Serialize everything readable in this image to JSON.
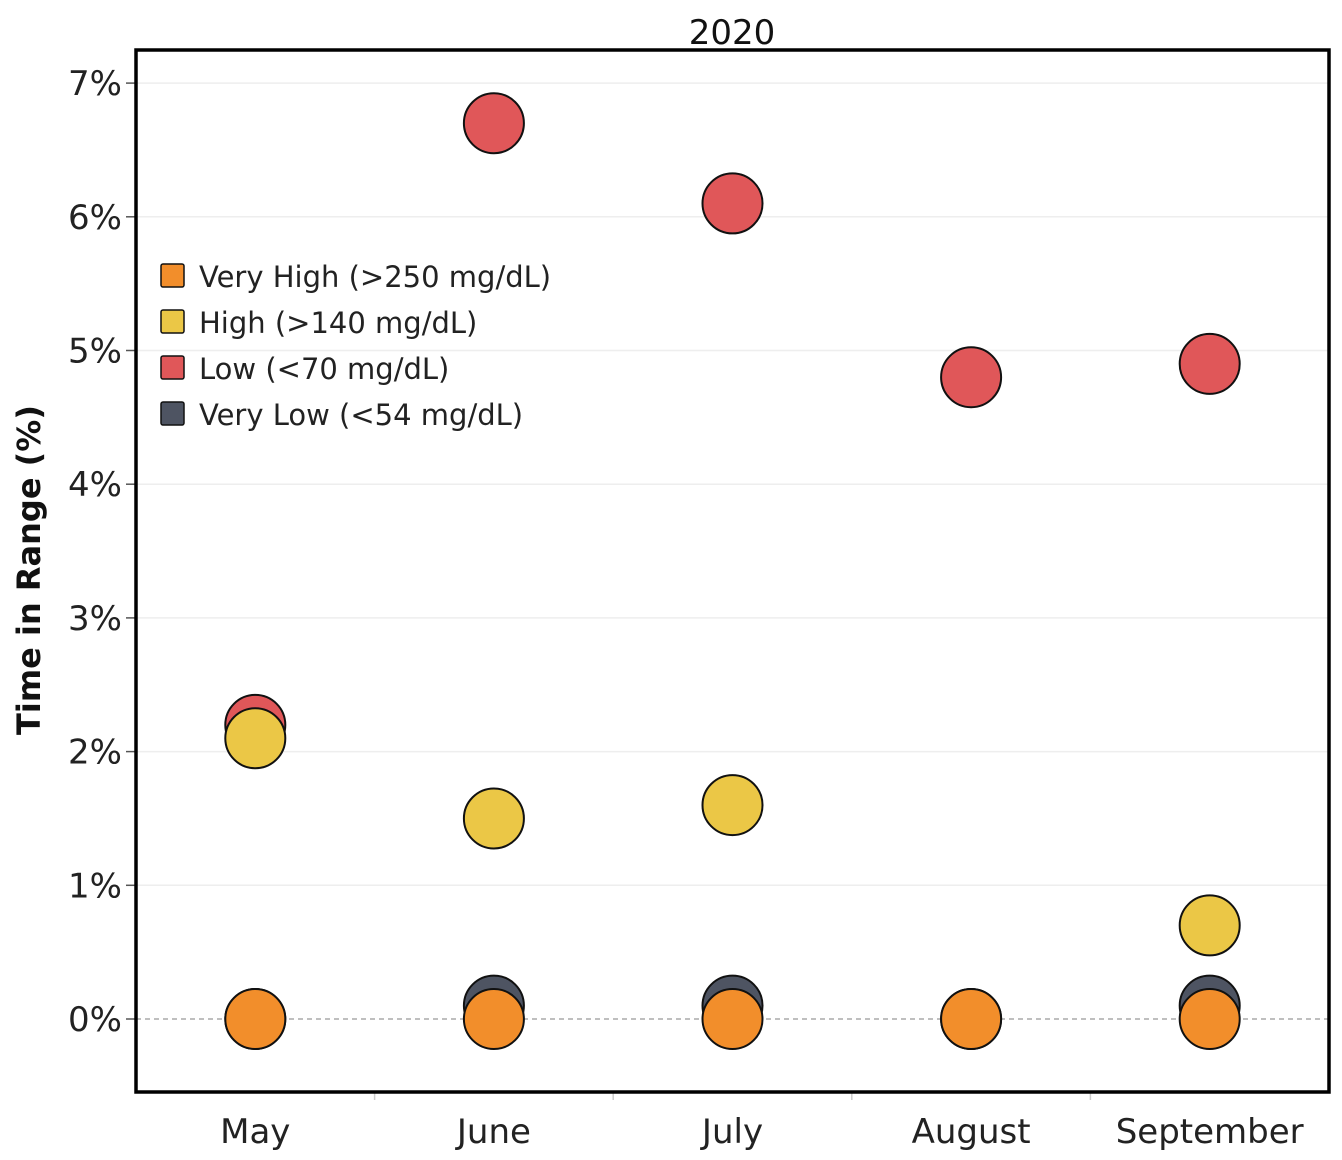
{
  "chart_data": {
    "type": "scatter",
    "title": "2020",
    "ylabel": "Time in Range (%)",
    "xlabel": "",
    "categories": [
      "May",
      "June",
      "July",
      "August",
      "September"
    ],
    "yticks": [
      "0%",
      "1%",
      "2%",
      "3%",
      "4%",
      "5%",
      "6%",
      "7%"
    ],
    "ylim": [
      -0.8,
      7.5
    ],
    "grid": true,
    "legend_position": "top-left",
    "series": [
      {
        "name": "Very Low (<54 mg/dL)",
        "color": "#4e5462",
        "values": [
          0.0,
          0.1,
          0.1,
          0.0,
          0.1
        ]
      },
      {
        "name": "Low (<70 mg/dL)",
        "color": "#e05759",
        "values": [
          2.2,
          6.7,
          6.1,
          4.8,
          4.9
        ]
      },
      {
        "name": "High (>140 mg/dL)",
        "color": "#ebc746",
        "values": [
          2.1,
          1.5,
          1.6,
          null,
          0.7
        ]
      },
      {
        "name": "Very High (>250 mg/dL)",
        "color": "#f28e2b",
        "values": [
          0.0,
          0.0,
          0.0,
          0.0,
          0.0
        ]
      }
    ],
    "legend_order": [
      "Very High (>250 mg/dL)",
      "High (>140 mg/dL)",
      "Low (<70 mg/dL)",
      "Very Low (<54 mg/dL)"
    ]
  }
}
